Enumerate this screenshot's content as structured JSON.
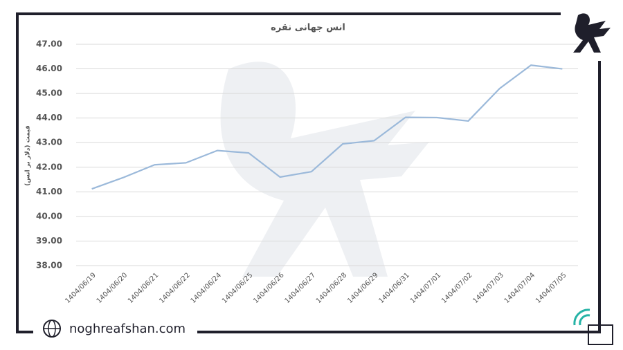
{
  "chart_data": {
    "type": "line",
    "title": "انس جهانی نقره",
    "y_label": "قیمت (دلار بر انس)",
    "categories": [
      "1404/06/19",
      "1404/06/20",
      "1404/06/21",
      "1404/06/22",
      "1404/06/24",
      "1404/06/25",
      "1404/06/26",
      "1404/06/27",
      "1404/06/28",
      "1404/06/29",
      "1404/06/31",
      "1404/07/01",
      "1404/07/02",
      "1404/07/03",
      "1404/07/04",
      "1404/07/05"
    ],
    "series": [
      {
        "color": "#9bb9da",
        "values": [
          41.12,
          41.58,
          42.1,
          42.18,
          42.68,
          42.58,
          41.6,
          41.82,
          42.95,
          43.08,
          44.03,
          44.02,
          43.88,
          45.2,
          46.15,
          46.0
        ]
      }
    ],
    "ylim": [
      38,
      47
    ],
    "yticks": [
      {
        "value": 38,
        "label": "38.00"
      },
      {
        "value": 39,
        "label": "39.00"
      },
      {
        "value": 40,
        "label": "40.00"
      },
      {
        "value": 41,
        "label": "41.00"
      },
      {
        "value": 42,
        "label": "42.00"
      },
      {
        "value": 43,
        "label": "43.00"
      },
      {
        "value": 44,
        "label": "44.00"
      },
      {
        "value": 45,
        "label": "45.00"
      },
      {
        "value": 46,
        "label": "46.00"
      },
      {
        "value": 47,
        "label": "47.00"
      }
    ],
    "grid": true
  },
  "footer": {
    "website": "noghreafshan.com"
  }
}
